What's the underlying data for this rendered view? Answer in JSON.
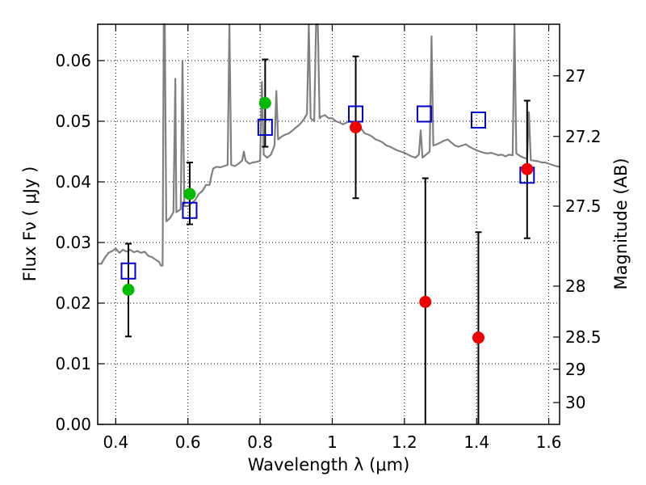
{
  "chart_data": {
    "type": "scatter",
    "xlabel": "Wavelength  λ (μm)",
    "ylabel": "Flux  Fν  ( μJy )",
    "y2label": "Magnitude (AB)",
    "xlim": [
      0.35,
      1.63
    ],
    "ylim": [
      0.0,
      0.066
    ],
    "x_ticks": [
      0.4,
      0.6,
      0.8,
      1.0,
      1.2,
      1.4,
      1.6
    ],
    "x_tick_labels": [
      "0.4",
      "0.6",
      "0.8",
      "1",
      "1.2",
      "1.4",
      "1.6"
    ],
    "y_ticks": [
      0.0,
      0.01,
      0.02,
      0.03,
      0.04,
      0.05,
      0.06
    ],
    "y_tick_labels": [
      "0.00",
      "0.01",
      "0.02",
      "0.03",
      "0.04",
      "0.05",
      "0.06"
    ],
    "y2_ticks": [
      {
        "flux": 0.0575,
        "label": "27"
      },
      {
        "flux": 0.0475,
        "label": "27.2"
      },
      {
        "flux": 0.036,
        "label": "27.5"
      },
      {
        "flux": 0.0228,
        "label": "28"
      },
      {
        "flux": 0.0144,
        "label": "28.5"
      },
      {
        "flux": 0.0091,
        "label": "29"
      },
      {
        "flux": 0.0036,
        "label": "30"
      }
    ],
    "grid": true,
    "colors": {
      "spectrum": "#808080",
      "green": "#00bb00",
      "red": "#ee0000",
      "model": "#0000cc",
      "errorbar": "#000000"
    },
    "series": [
      {
        "kind": "line",
        "points": [
          [
            0.35,
            0.0265
          ],
          [
            0.36,
            0.0265
          ],
          [
            0.37,
            0.0275
          ],
          [
            0.38,
            0.0283
          ],
          [
            0.39,
            0.0286
          ],
          [
            0.4,
            0.029
          ],
          [
            0.41,
            0.0283
          ],
          [
            0.42,
            0.0288
          ],
          [
            0.43,
            0.0285
          ],
          [
            0.44,
            0.0288
          ],
          [
            0.45,
            0.0284
          ],
          [
            0.46,
            0.0286
          ],
          [
            0.47,
            0.0283
          ],
          [
            0.48,
            0.0285
          ],
          [
            0.49,
            0.0278
          ],
          [
            0.5,
            0.0276
          ],
          [
            0.51,
            0.0272
          ],
          [
            0.52,
            0.0268
          ],
          [
            0.525,
            0.0262
          ],
          [
            0.53,
            0.0262
          ],
          [
            0.533,
            0.066
          ],
          [
            0.536,
            0.066
          ],
          [
            0.54,
            0.0335
          ],
          [
            0.55,
            0.034
          ],
          [
            0.56,
            0.035
          ],
          [
            0.565,
            0.057
          ],
          [
            0.568,
            0.035
          ],
          [
            0.58,
            0.0355
          ],
          [
            0.585,
            0.06
          ],
          [
            0.59,
            0.036
          ],
          [
            0.6,
            0.036
          ],
          [
            0.61,
            0.0365
          ],
          [
            0.62,
            0.037
          ],
          [
            0.63,
            0.038
          ],
          [
            0.64,
            0.0385
          ],
          [
            0.65,
            0.0395
          ],
          [
            0.66,
            0.0395
          ],
          [
            0.665,
            0.041
          ],
          [
            0.67,
            0.0422
          ],
          [
            0.68,
            0.0425
          ],
          [
            0.69,
            0.0424
          ],
          [
            0.7,
            0.0426
          ],
          [
            0.71,
            0.0428
          ],
          [
            0.715,
            0.066
          ],
          [
            0.72,
            0.0428
          ],
          [
            0.73,
            0.0426
          ],
          [
            0.74,
            0.043
          ],
          [
            0.75,
            0.0435
          ],
          [
            0.755,
            0.045
          ],
          [
            0.76,
            0.0435
          ],
          [
            0.77,
            0.043
          ],
          [
            0.78,
            0.0432
          ],
          [
            0.79,
            0.0433
          ],
          [
            0.8,
            0.0435
          ],
          [
            0.805,
            0.0565
          ],
          [
            0.81,
            0.0445
          ],
          [
            0.82,
            0.044
          ],
          [
            0.83,
            0.0445
          ],
          [
            0.84,
            0.046
          ],
          [
            0.845,
            0.055
          ],
          [
            0.85,
            0.047
          ],
          [
            0.86,
            0.0475
          ],
          [
            0.87,
            0.0478
          ],
          [
            0.88,
            0.048
          ],
          [
            0.89,
            0.0485
          ],
          [
            0.9,
            0.049
          ],
          [
            0.91,
            0.0495
          ],
          [
            0.92,
            0.0502
          ],
          [
            0.93,
            0.0512
          ],
          [
            0.935,
            0.066
          ],
          [
            0.94,
            0.0505
          ],
          [
            0.95,
            0.05
          ],
          [
            0.955,
            0.066
          ],
          [
            0.96,
            0.066
          ],
          [
            0.965,
            0.0505
          ],
          [
            0.97,
            0.0508
          ],
          [
            0.98,
            0.051
          ],
          [
            0.99,
            0.0505
          ],
          [
            1.0,
            0.0505
          ],
          [
            1.01,
            0.05
          ],
          [
            1.02,
            0.0498
          ],
          [
            1.03,
            0.0495
          ],
          [
            1.04,
            0.0498
          ],
          [
            1.05,
            0.05
          ],
          [
            1.06,
            0.0495
          ],
          [
            1.07,
            0.0492
          ],
          [
            1.08,
            0.0488
          ],
          [
            1.09,
            0.048
          ],
          [
            1.1,
            0.0478
          ],
          [
            1.11,
            0.0475
          ],
          [
            1.12,
            0.047
          ],
          [
            1.13,
            0.0468
          ],
          [
            1.14,
            0.0465
          ],
          [
            1.15,
            0.046
          ],
          [
            1.16,
            0.0458
          ],
          [
            1.17,
            0.0455
          ],
          [
            1.18,
            0.0452
          ],
          [
            1.19,
            0.045
          ],
          [
            1.2,
            0.0448
          ],
          [
            1.21,
            0.0445
          ],
          [
            1.22,
            0.0442
          ],
          [
            1.23,
            0.044
          ],
          [
            1.24,
            0.0445
          ],
          [
            1.245,
            0.0485
          ],
          [
            1.25,
            0.044
          ],
          [
            1.26,
            0.0445
          ],
          [
            1.27,
            0.045
          ],
          [
            1.275,
            0.064
          ],
          [
            1.28,
            0.046
          ],
          [
            1.29,
            0.0462
          ],
          [
            1.3,
            0.0465
          ],
          [
            1.31,
            0.0468
          ],
          [
            1.32,
            0.047
          ],
          [
            1.33,
            0.0465
          ],
          [
            1.34,
            0.046
          ],
          [
            1.35,
            0.0458
          ],
          [
            1.36,
            0.046
          ],
          [
            1.37,
            0.0462
          ],
          [
            1.38,
            0.0458
          ],
          [
            1.39,
            0.0455
          ],
          [
            1.4,
            0.0452
          ],
          [
            1.41,
            0.045
          ],
          [
            1.42,
            0.0448
          ],
          [
            1.43,
            0.0447
          ],
          [
            1.44,
            0.0448
          ],
          [
            1.45,
            0.0446
          ],
          [
            1.46,
            0.0444
          ],
          [
            1.47,
            0.0445
          ],
          [
            1.48,
            0.0442
          ],
          [
            1.49,
            0.0445
          ],
          [
            1.5,
            0.0444
          ],
          [
            1.505,
            0.066
          ],
          [
            1.51,
            0.0447
          ],
          [
            1.52,
            0.0443
          ],
          [
            1.53,
            0.044
          ],
          [
            1.54,
            0.0438
          ],
          [
            1.545,
            0.0515
          ],
          [
            1.55,
            0.0436
          ],
          [
            1.56,
            0.0435
          ],
          [
            1.57,
            0.0434
          ],
          [
            1.58,
            0.0432
          ],
          [
            1.59,
            0.0432
          ],
          [
            1.6,
            0.043
          ],
          [
            1.61,
            0.0428
          ],
          [
            1.62,
            0.0426
          ],
          [
            1.63,
            0.0425
          ]
        ]
      },
      {
        "kind": "points",
        "marker": "square",
        "points": [
          [
            0.435,
            0.0253
          ],
          [
            0.605,
            0.0353
          ],
          [
            0.814,
            0.049
          ],
          [
            1.065,
            0.0512
          ],
          [
            1.255,
            0.0512
          ],
          [
            1.405,
            0.0502
          ],
          [
            1.54,
            0.0411
          ]
        ]
      },
      {
        "kind": "points",
        "marker": "circle",
        "color": "green",
        "points": [
          [
            0.435,
            0.0222
          ],
          [
            0.605,
            0.038
          ],
          [
            0.814,
            0.053
          ]
        ]
      },
      {
        "kind": "points",
        "marker": "circle",
        "color": "red",
        "points": [
          [
            1.065,
            0.049
          ],
          [
            1.258,
            0.0202
          ],
          [
            1.405,
            0.0143
          ],
          [
            1.54,
            0.0421
          ]
        ]
      },
      {
        "kind": "errorbars",
        "points": [
          {
            "x": 0.435,
            "low": 0.0145,
            "high": 0.0298
          },
          {
            "x": 0.605,
            "low": 0.033,
            "high": 0.0432
          },
          {
            "x": 0.814,
            "low": 0.0458,
            "high": 0.0602
          },
          {
            "x": 1.065,
            "low": 0.0373,
            "high": 0.0607
          },
          {
            "x": 1.258,
            "low": 0.0,
            "high": 0.0406
          },
          {
            "x": 1.405,
            "low": 0.0,
            "high": 0.0317
          },
          {
            "x": 1.54,
            "low": 0.0307,
            "high": 0.0534
          }
        ]
      }
    ]
  }
}
